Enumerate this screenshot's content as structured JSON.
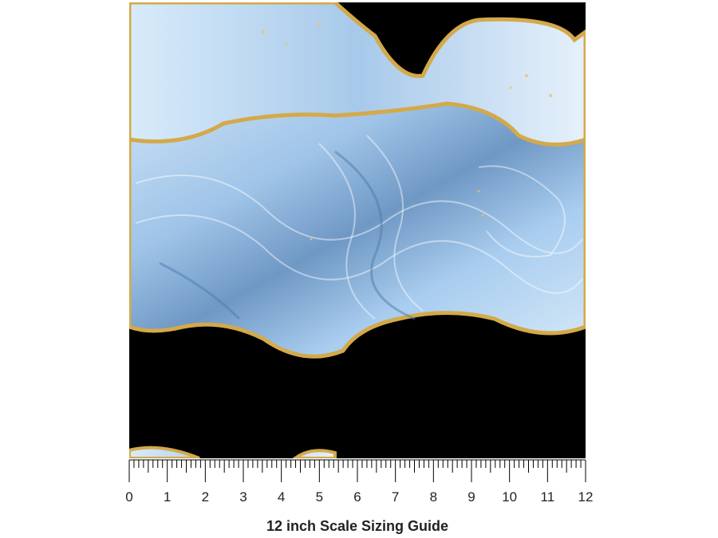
{
  "ruler": {
    "labels": [
      "0",
      "1",
      "2",
      "3",
      "4",
      "5",
      "6",
      "7",
      "8",
      "9",
      "10",
      "11",
      "12"
    ]
  },
  "caption": "12 inch Scale Sizing Guide"
}
